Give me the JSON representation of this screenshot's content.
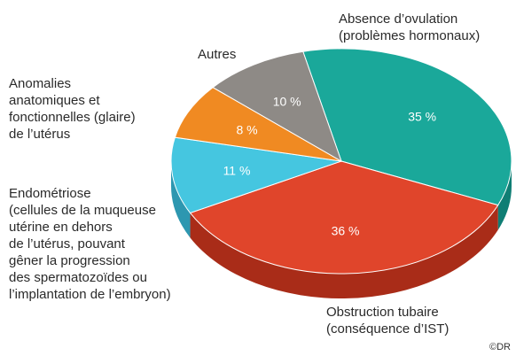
{
  "chart_data": {
    "type": "pie",
    "title": "",
    "slices": [
      {
        "label": "Absence d’ovulation (problèmes hormonaux)",
        "value": 35,
        "value_label": "35 %",
        "color": "#1aa89a"
      },
      {
        "label": "Obstruction tubaire (conséquence d’IST)",
        "value": 36,
        "value_label": "36 %",
        "color": "#e0452b"
      },
      {
        "label": "Endométriose (cellules de la muqueuse utérine en dehors de l’utérus, pouvant gêner la progression des spermatozoïdes ou l’implantation de l’embryon)",
        "value": 11,
        "value_label": "11 %",
        "color": "#45c6e0"
      },
      {
        "label": "Anomalies anatomiques et fonctionnelles (glaire) de l’utérus",
        "value": 8,
        "value_label": "8 %",
        "color": "#f08a22"
      },
      {
        "label": "Autres",
        "value": 10,
        "value_label": "10 %",
        "color": "#8e8a86"
      }
    ],
    "legend": "none",
    "style": "3d-pie"
  },
  "labels": {
    "ovulation": [
      "Absence d’ovulation",
      "(problèmes hormonaux)"
    ],
    "obstruction": [
      "Obstruction tubaire",
      "(conséquence d’IST)"
    ],
    "endometriose": [
      "Endométriose",
      "(cellules de la muqueuse",
      "utérine en dehors",
      "de l’utérus, pouvant",
      "gêner la progression",
      "des spermatozoïdes ou",
      "l’implantation de l’embryon)"
    ],
    "anomalies": [
      "Anomalies",
      "anatomiques et",
      "fonctionnelles (glaire)",
      "de l’utérus"
    ],
    "autres": [
      "Autres"
    ]
  },
  "credit": "©DR",
  "colors": {
    "side_teal": "#0f7e74",
    "side_red": "#a92c18",
    "side_blue": "#2d97b0"
  }
}
